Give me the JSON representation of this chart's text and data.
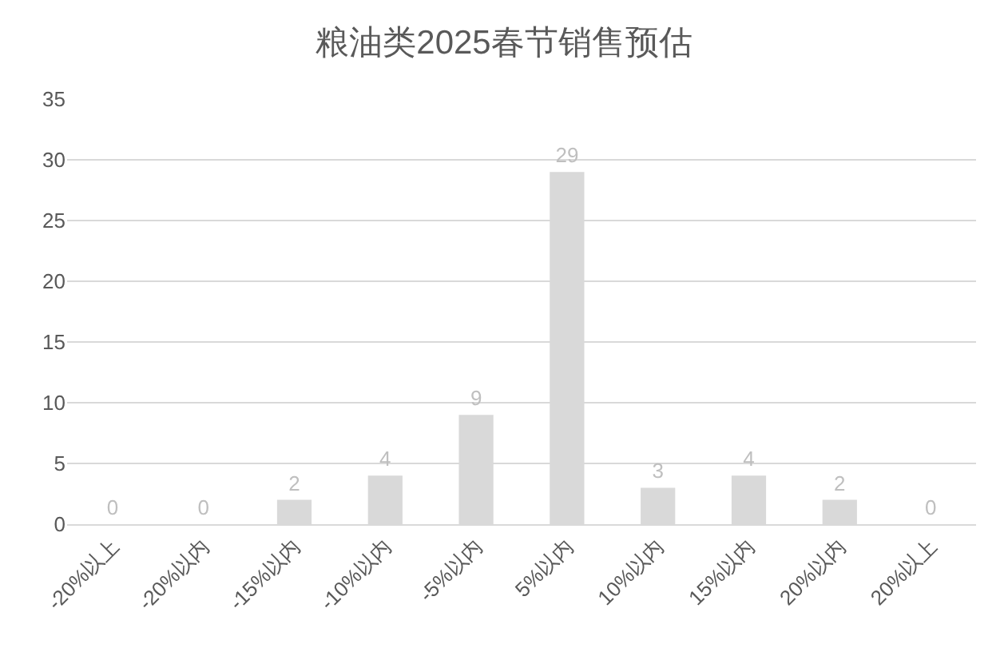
{
  "chart_data": {
    "type": "bar",
    "title": "粮油类2025春节销售预估",
    "categories": [
      "-20%以上",
      "-20%以内",
      "-15%以内",
      "-10%以内",
      "-5%以内",
      "5%以内",
      "10%以内",
      "15%以内",
      "20%以内",
      "20%以上"
    ],
    "values": [
      0,
      0,
      2,
      4,
      9,
      29,
      3,
      4,
      2,
      0
    ],
    "color": "#d9d9d9",
    "ylim": [
      0,
      35
    ],
    "yticks": [
      0,
      5,
      10,
      15,
      20,
      25,
      30,
      35
    ],
    "grid": "y",
    "data_labels": true
  }
}
